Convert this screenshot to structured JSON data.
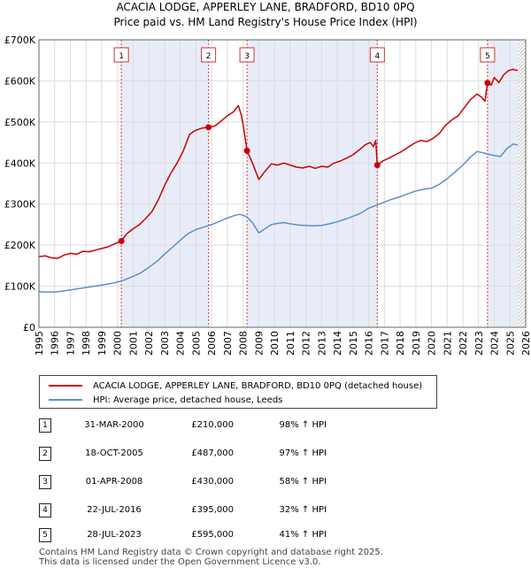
{
  "chart_data": {
    "type": "line",
    "title": "ACACIA LODGE, APPERLEY LANE, BRADFORD, BD10 0PQ",
    "subtitle": "Price paid vs. HM Land Registry's House Price Index (HPI)",
    "xlim": [
      1995.0,
      2026.0
    ],
    "ylim": [
      0,
      700000
    ],
    "y_ticks": [
      {
        "value": 0,
        "label": "£0"
      },
      {
        "value": 100000,
        "label": "£100K"
      },
      {
        "value": 200000,
        "label": "£200K"
      },
      {
        "value": 300000,
        "label": "£300K"
      },
      {
        "value": 400000,
        "label": "£400K"
      },
      {
        "value": 500000,
        "label": "£500K"
      },
      {
        "value": 600000,
        "label": "£600K"
      },
      {
        "value": 700000,
        "label": "£700K"
      }
    ],
    "x_ticks": [
      "1995",
      "1996",
      "1997",
      "1998",
      "1999",
      "2000",
      "2001",
      "2002",
      "2003",
      "2004",
      "2005",
      "2006",
      "2007",
      "2008",
      "2009",
      "2010",
      "2011",
      "2012",
      "2013",
      "2014",
      "2015",
      "2016",
      "2017",
      "2018",
      "2019",
      "2020",
      "2021",
      "2022",
      "2023",
      "2024",
      "2025",
      "2026"
    ],
    "ownership_spans": [
      [
        2000.25,
        2005.8
      ],
      [
        2008.25,
        2016.55
      ],
      [
        2023.57,
        2025.5
      ]
    ],
    "future_hatch_from": 2025.5,
    "series": [
      {
        "name": "ACACIA LODGE, APPERLEY LANE, BRADFORD, BD10 0PQ (detached house)",
        "color": "#cc0000",
        "points": [
          [
            1995.0,
            172000
          ],
          [
            1995.4,
            174000
          ],
          [
            1995.8,
            169000
          ],
          [
            1996.2,
            168000
          ],
          [
            1996.6,
            176000
          ],
          [
            1997.0,
            180000
          ],
          [
            1997.4,
            178000
          ],
          [
            1997.8,
            185000
          ],
          [
            1998.2,
            184000
          ],
          [
            1998.6,
            188000
          ],
          [
            1999.0,
            192000
          ],
          [
            1999.4,
            196000
          ],
          [
            1999.8,
            203000
          ],
          [
            2000.25,
            210000
          ],
          [
            2000.6,
            228000
          ],
          [
            2001.0,
            240000
          ],
          [
            2001.4,
            250000
          ],
          [
            2001.8,
            265000
          ],
          [
            2002.2,
            282000
          ],
          [
            2002.6,
            310000
          ],
          [
            2003.0,
            345000
          ],
          [
            2003.4,
            375000
          ],
          [
            2003.8,
            400000
          ],
          [
            2004.2,
            430000
          ],
          [
            2004.6,
            470000
          ],
          [
            2005.0,
            480000
          ],
          [
            2005.4,
            485000
          ],
          [
            2005.8,
            487000
          ],
          [
            2006.2,
            490000
          ],
          [
            2006.6,
            502000
          ],
          [
            2007.0,
            515000
          ],
          [
            2007.4,
            525000
          ],
          [
            2007.7,
            540000
          ],
          [
            2007.9,
            515000
          ],
          [
            2008.1,
            470000
          ],
          [
            2008.25,
            430000
          ],
          [
            2008.6,
            400000
          ],
          [
            2009.0,
            360000
          ],
          [
            2009.4,
            380000
          ],
          [
            2009.8,
            398000
          ],
          [
            2010.2,
            395000
          ],
          [
            2010.6,
            400000
          ],
          [
            2011.0,
            395000
          ],
          [
            2011.4,
            390000
          ],
          [
            2011.8,
            388000
          ],
          [
            2012.2,
            392000
          ],
          [
            2012.6,
            387000
          ],
          [
            2013.0,
            392000
          ],
          [
            2013.4,
            390000
          ],
          [
            2013.8,
            400000
          ],
          [
            2014.2,
            405000
          ],
          [
            2014.6,
            412000
          ],
          [
            2015.0,
            420000
          ],
          [
            2015.4,
            432000
          ],
          [
            2015.8,
            445000
          ],
          [
            2016.1,
            450000
          ],
          [
            2016.3,
            440000
          ],
          [
            2016.45,
            455000
          ],
          [
            2016.55,
            395000
          ],
          [
            2016.9,
            405000
          ],
          [
            2017.3,
            412000
          ],
          [
            2017.7,
            420000
          ],
          [
            2018.1,
            428000
          ],
          [
            2018.5,
            438000
          ],
          [
            2018.9,
            448000
          ],
          [
            2019.3,
            455000
          ],
          [
            2019.7,
            452000
          ],
          [
            2020.1,
            460000
          ],
          [
            2020.5,
            472000
          ],
          [
            2020.9,
            492000
          ],
          [
            2021.3,
            505000
          ],
          [
            2021.7,
            515000
          ],
          [
            2022.1,
            535000
          ],
          [
            2022.5,
            555000
          ],
          [
            2022.9,
            568000
          ],
          [
            2023.2,
            560000
          ],
          [
            2023.4,
            550000
          ],
          [
            2023.57,
            595000
          ],
          [
            2023.8,
            590000
          ],
          [
            2024.0,
            608000
          ],
          [
            2024.3,
            596000
          ],
          [
            2024.6,
            615000
          ],
          [
            2024.9,
            625000
          ],
          [
            2025.2,
            628000
          ],
          [
            2025.5,
            625000
          ]
        ]
      },
      {
        "name": "HPI: Average price, detached house, Leeds",
        "color": "#5b8fcc",
        "points": [
          [
            1995.0,
            87000
          ],
          [
            1995.5,
            86000
          ],
          [
            1996.0,
            86000
          ],
          [
            1996.5,
            88000
          ],
          [
            1997.0,
            91000
          ],
          [
            1997.5,
            94000
          ],
          [
            1998.0,
            97000
          ],
          [
            1998.5,
            100000
          ],
          [
            1999.0,
            103000
          ],
          [
            1999.5,
            106000
          ],
          [
            2000.0,
            110000
          ],
          [
            2000.5,
            116000
          ],
          [
            2001.0,
            124000
          ],
          [
            2001.5,
            133000
          ],
          [
            2002.0,
            146000
          ],
          [
            2002.5,
            160000
          ],
          [
            2003.0,
            178000
          ],
          [
            2003.5,
            195000
          ],
          [
            2004.0,
            212000
          ],
          [
            2004.5,
            228000
          ],
          [
            2005.0,
            238000
          ],
          [
            2005.5,
            244000
          ],
          [
            2006.0,
            250000
          ],
          [
            2006.5,
            258000
          ],
          [
            2007.0,
            266000
          ],
          [
            2007.5,
            273000
          ],
          [
            2007.8,
            275000
          ],
          [
            2008.2,
            270000
          ],
          [
            2008.6,
            255000
          ],
          [
            2009.0,
            230000
          ],
          [
            2009.4,
            240000
          ],
          [
            2009.8,
            250000
          ],
          [
            2010.2,
            253000
          ],
          [
            2010.6,
            255000
          ],
          [
            2011.0,
            252000
          ],
          [
            2011.5,
            249000
          ],
          [
            2012.0,
            248000
          ],
          [
            2012.5,
            247000
          ],
          [
            2013.0,
            248000
          ],
          [
            2013.5,
            252000
          ],
          [
            2014.0,
            257000
          ],
          [
            2014.5,
            263000
          ],
          [
            2015.0,
            270000
          ],
          [
            2015.5,
            278000
          ],
          [
            2016.0,
            290000
          ],
          [
            2016.55,
            298000
          ],
          [
            2017.0,
            305000
          ],
          [
            2017.5,
            312000
          ],
          [
            2018.0,
            318000
          ],
          [
            2018.5,
            325000
          ],
          [
            2019.0,
            332000
          ],
          [
            2019.5,
            336000
          ],
          [
            2020.0,
            339000
          ],
          [
            2020.5,
            348000
          ],
          [
            2021.0,
            362000
          ],
          [
            2021.5,
            378000
          ],
          [
            2022.0,
            395000
          ],
          [
            2022.5,
            415000
          ],
          [
            2022.9,
            428000
          ],
          [
            2023.3,
            425000
          ],
          [
            2023.57,
            422000
          ],
          [
            2024.0,
            418000
          ],
          [
            2024.4,
            416000
          ],
          [
            2024.8,
            435000
          ],
          [
            2025.2,
            446000
          ],
          [
            2025.5,
            444000
          ]
        ]
      }
    ],
    "sales": [
      {
        "num": "1",
        "x": 2000.25,
        "price": 210000
      },
      {
        "num": "2",
        "x": 2005.8,
        "price": 487000
      },
      {
        "num": "3",
        "x": 2008.25,
        "price": 430000
      },
      {
        "num": "4",
        "x": 2016.55,
        "price": 395000
      },
      {
        "num": "5",
        "x": 2023.57,
        "price": 595000
      }
    ]
  },
  "legend": {
    "property_label": "ACACIA LODGE, APPERLEY LANE, BRADFORD, BD10 0PQ (detached house)",
    "hpi_label": "HPI: Average price, detached house, Leeds",
    "property_color": "#cc0000",
    "hpi_color": "#5b8fcc"
  },
  "sales_table": [
    {
      "num": "1",
      "date": "31-MAR-2000",
      "price": "£210,000",
      "hpi": "98% ↑ HPI"
    },
    {
      "num": "2",
      "date": "18-OCT-2005",
      "price": "£487,000",
      "hpi": "97% ↑ HPI"
    },
    {
      "num": "3",
      "date": "01-APR-2008",
      "price": "£430,000",
      "hpi": "58% ↑ HPI"
    },
    {
      "num": "4",
      "date": "22-JUL-2016",
      "price": "£395,000",
      "hpi": "32% ↑ HPI"
    },
    {
      "num": "5",
      "date": "28-JUL-2023",
      "price": "£595,000",
      "hpi": "41% ↑ HPI"
    }
  ],
  "footer": {
    "line1": "Contains HM Land Registry data © Crown copyright and database right 2025.",
    "line2": "This data is licensed under the Open Government Licence v3.0."
  }
}
